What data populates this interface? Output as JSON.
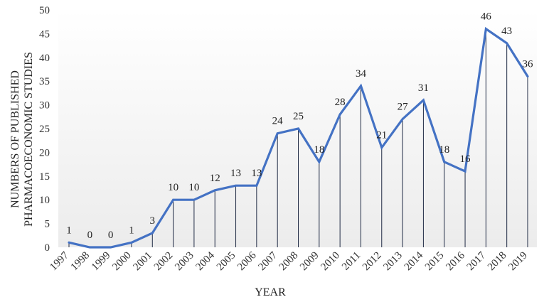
{
  "chart_data": {
    "type": "line",
    "title": "",
    "xlabel": "YEAR",
    "ylabel_lines": [
      "NUMBERS OF PUBLISHED",
      "PHARMACOECONOMIC STUDIES"
    ],
    "ylim": [
      0,
      50
    ],
    "yticks": [
      0,
      5,
      10,
      15,
      20,
      25,
      30,
      35,
      40,
      45,
      50
    ],
    "grid": false,
    "drop_lines": true,
    "line_color": "#4472C4",
    "categories": [
      "1997",
      "1998",
      "1999",
      "2000",
      "2001",
      "2002",
      "2003",
      "2004",
      "2005",
      "2006",
      "2007",
      "2008",
      "2009",
      "2010",
      "2011",
      "2012",
      "2013",
      "2014",
      "2015",
      "2016",
      "2017",
      "2018",
      "2019"
    ],
    "values": [
      1,
      0,
      0,
      1,
      3,
      10,
      10,
      12,
      13,
      13,
      24,
      25,
      18,
      28,
      34,
      21,
      27,
      31,
      18,
      16,
      46,
      43,
      36
    ]
  }
}
